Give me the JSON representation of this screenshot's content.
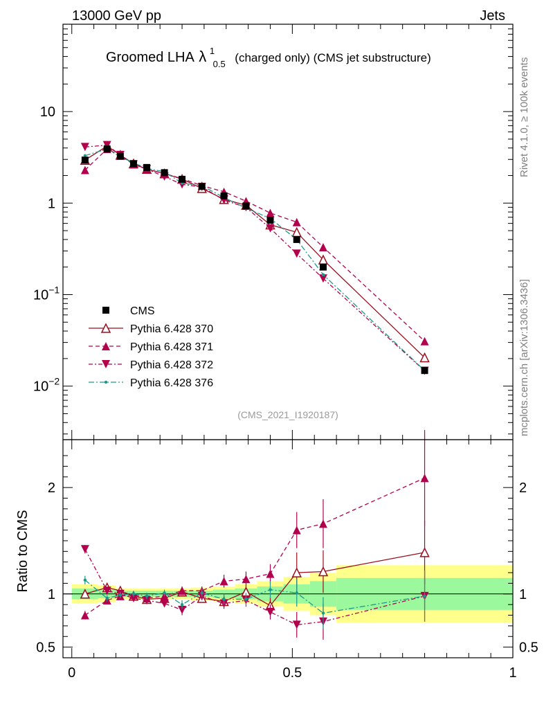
{
  "header": {
    "left": "13000 GeV pp",
    "right": "Jets"
  },
  "side_labels": {
    "top": "Rivet 4.1.0, ≥ 100k events",
    "bottom": "mcplots.cern.ch [arXiv:1306.3436]"
  },
  "chart_data": {
    "type": "line",
    "title": {
      "prefix": "Groomed LHA",
      "symbol": "λ",
      "sup": "1",
      "sub": "0.5",
      "suffix": "(charged only) (CMS jet substructure)"
    },
    "watermark": "(CMS_2021_I1920187)",
    "main_yscale": "log",
    "main_ylim": [
      0.0026,
      90
    ],
    "main_yticks": [
      {
        "base": "10",
        "exp": "",
        "value": 10
      },
      {
        "base": "1",
        "exp": "",
        "value": 1
      },
      {
        "base": "10",
        "exp": "−1",
        "value": 0.1
      },
      {
        "base": "10",
        "exp": "−2",
        "value": 0.01
      }
    ],
    "xlim": [
      -0.02,
      1.0
    ],
    "xticks": [
      "0",
      "0.5",
      "1"
    ],
    "ratio_ylabel": "Ratio to CMS",
    "ratio_ylim": [
      0.4,
      2.45
    ],
    "ratio_yticks": [
      "0.5",
      "1",
      "2"
    ],
    "x": [
      0.03,
      0.08,
      0.11,
      0.14,
      0.17,
      0.21,
      0.25,
      0.295,
      0.345,
      0.395,
      0.45,
      0.51,
      0.57,
      0.8
    ],
    "bin_edges": [
      0.0,
      0.06,
      0.1,
      0.12,
      0.16,
      0.19,
      0.23,
      0.27,
      0.32,
      0.37,
      0.42,
      0.48,
      0.54,
      0.6,
      1.0
    ],
    "band_inner": [
      0.05,
      0.04,
      0.03,
      0.03,
      0.03,
      0.03,
      0.03,
      0.03,
      0.04,
      0.05,
      0.07,
      0.09,
      0.12,
      0.15
    ],
    "band_outer": [
      0.09,
      0.08,
      0.05,
      0.05,
      0.05,
      0.05,
      0.05,
      0.06,
      0.07,
      0.09,
      0.12,
      0.16,
      0.2,
      0.27
    ],
    "data": {
      "name": "CMS",
      "values": [
        2.95,
        3.9,
        3.25,
        2.7,
        2.45,
        2.15,
        1.82,
        1.52,
        1.2,
        0.93,
        0.65,
        0.4,
        0.2,
        0.0148
      ]
    },
    "legend": {
      "position": "lower-left"
    },
    "series": [
      {
        "name": "Pythia 6.428 370",
        "marker": "triangle-up-open",
        "dash": "",
        "color": "#9b0d1c",
        "values": [
          2.95,
          4.2,
          3.35,
          2.7,
          2.35,
          2.1,
          1.83,
          1.45,
          1.1,
          0.95,
          0.58,
          0.48,
          0.24,
          0.0205
        ],
        "ratio": [
          1.0,
          1.06,
          1.03,
          0.98,
          0.95,
          0.96,
          1.02,
          0.96,
          0.93,
          1.02,
          0.89,
          1.2,
          1.21,
          1.39
        ],
        "ratio_err": [
          0.03,
          0.03,
          0.03,
          0.03,
          0.03,
          0.03,
          0.04,
          0.04,
          0.05,
          0.06,
          0.08,
          0.19,
          0.2,
          0.3
        ]
      },
      {
        "name": "Pythia 6.428 371",
        "marker": "triangle-up",
        "dash": "6,4",
        "color": "#b3004c",
        "values": [
          2.3,
          3.9,
          3.3,
          2.65,
          2.35,
          2.1,
          1.85,
          1.55,
          1.33,
          1.05,
          0.78,
          0.62,
          0.33,
          0.031
        ],
        "ratio": [
          0.8,
          0.94,
          0.98,
          0.99,
          0.96,
          0.98,
          1.03,
          1.03,
          1.12,
          1.14,
          1.19,
          1.6,
          1.66,
          2.09
        ],
        "ratio_err": [
          0.04,
          0.03,
          0.03,
          0.03,
          0.03,
          0.03,
          0.04,
          0.04,
          0.06,
          0.07,
          0.09,
          0.17,
          0.23,
          0.45
        ]
      },
      {
        "name": "Pythia 6.428 372",
        "marker": "triangle-down",
        "dash": "6,3,2,3",
        "color": "#b3004c",
        "values": [
          4.1,
          4.3,
          3.35,
          2.65,
          2.35,
          1.95,
          1.6,
          1.5,
          1.08,
          0.9,
          0.53,
          0.28,
          0.15,
          0.0147
        ],
        "ratio": [
          1.42,
          1.03,
          1.0,
          0.96,
          0.94,
          0.91,
          0.85,
          0.98,
          0.91,
          0.94,
          0.83,
          0.71,
          0.74,
          0.98
        ],
        "ratio_err": [
          0.04,
          0.03,
          0.03,
          0.03,
          0.03,
          0.03,
          0.05,
          0.04,
          0.05,
          0.06,
          0.07,
          0.12,
          0.17,
          0.24
        ]
      },
      {
        "name": "Pythia 6.428 376",
        "marker": "dot",
        "dash": "8,3,2,3",
        "color": "#1b9a8c",
        "values": [
          3.3,
          3.9,
          3.2,
          2.75,
          2.4,
          2.2,
          1.65,
          1.55,
          1.15,
          0.88,
          0.68,
          0.4,
          0.165,
          0.0148
        ],
        "ratio": [
          1.13,
          0.96,
          0.99,
          1.0,
          0.98,
          1.01,
          0.9,
          1.01,
          0.95,
          0.95,
          1.04,
          1.01,
          0.82,
          0.98
        ],
        "ratio_err": [
          0.04,
          0.03,
          0.03,
          0.03,
          0.03,
          0.03,
          0.04,
          0.04,
          0.05,
          0.06,
          0.08,
          0.13,
          0.15,
          0.24
        ]
      }
    ]
  }
}
